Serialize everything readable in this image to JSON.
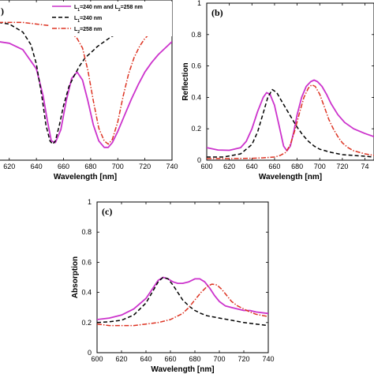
{
  "chart_data": [
    {
      "panel": "a",
      "type": "line",
      "label": "",
      "xlabel": "Wavelength [nm]",
      "ylabel": "",
      "xlim": [
        612,
        740
      ],
      "ylim": [
        0,
        1
      ],
      "x_ticks": [
        "620",
        "640",
        "660",
        "680",
        "700",
        "720",
        "740"
      ],
      "y_ticks": [],
      "grid": false,
      "legend_position": "top-center",
      "series": [
        {
          "name": "L₁=240 nm and L₂=258 nm",
          "label_parts": [
            "L",
            "1",
            "=240 nm and L",
            "2",
            "=258 nm"
          ],
          "color": "#cc33cc",
          "dash": "solid",
          "x": [
            612,
            620,
            630,
            640,
            645,
            648,
            651,
            654,
            658,
            662,
            666,
            670,
            674,
            678,
            682,
            686,
            690,
            693,
            696,
            700,
            705,
            710,
            715,
            720,
            725,
            730,
            735,
            740
          ],
          "y": [
            0.74,
            0.73,
            0.69,
            0.57,
            0.4,
            0.25,
            0.12,
            0.11,
            0.19,
            0.37,
            0.51,
            0.55,
            0.5,
            0.37,
            0.22,
            0.12,
            0.08,
            0.08,
            0.11,
            0.18,
            0.28,
            0.38,
            0.47,
            0.55,
            0.61,
            0.66,
            0.7,
            0.74
          ]
        },
        {
          "name": "L₁=240 nm",
          "label_parts": [
            "L",
            "1",
            "=240 nm"
          ],
          "color": "#000000",
          "dash": "dashed",
          "x": [
            612,
            620,
            630,
            636,
            640,
            644,
            647,
            650,
            652,
            654,
            657,
            660,
            664,
            668,
            672,
            676,
            680,
            685,
            690,
            695,
            700,
            710,
            720,
            730,
            740
          ],
          "y": [
            0.86,
            0.85,
            0.8,
            0.72,
            0.6,
            0.4,
            0.22,
            0.12,
            0.1,
            0.12,
            0.22,
            0.34,
            0.46,
            0.53,
            0.59,
            0.64,
            0.67,
            0.71,
            0.74,
            0.77,
            0.79,
            0.82,
            0.84,
            0.86,
            0.87
          ]
        },
        {
          "name": "L₂=258 nm",
          "label_parts": [
            "L",
            "2",
            "=258 nm"
          ],
          "color": "#dd3322",
          "dash": "dashdot",
          "x": [
            612,
            620,
            630,
            640,
            650,
            655,
            660,
            665,
            670,
            674,
            678,
            682,
            686,
            690,
            693,
            696,
            700,
            704,
            708,
            712,
            716,
            720,
            725,
            730,
            735,
            740
          ],
          "y": [
            0.86,
            0.86,
            0.86,
            0.85,
            0.84,
            0.83,
            0.82,
            0.8,
            0.76,
            0.7,
            0.56,
            0.37,
            0.2,
            0.12,
            0.1,
            0.13,
            0.24,
            0.4,
            0.54,
            0.64,
            0.71,
            0.76,
            0.8,
            0.83,
            0.85,
            0.86
          ]
        }
      ]
    },
    {
      "panel": "b",
      "type": "line",
      "label": "(b)",
      "xlabel": "Wavelength [nm]",
      "ylabel": "Reflection",
      "xlim": [
        600,
        748
      ],
      "ylim": [
        0,
        1
      ],
      "x_ticks": [
        "600",
        "620",
        "640",
        "660",
        "680",
        "700",
        "720",
        "74"
      ],
      "y_ticks": [
        "0",
        "0.2",
        "0.4",
        "0.6",
        "0.8",
        "1"
      ],
      "grid": false,
      "series": [
        {
          "name": "L₁=240 nm and L₂=258 nm",
          "color": "#cc33cc",
          "dash": "solid",
          "x": [
            600,
            610,
            620,
            630,
            635,
            640,
            645,
            650,
            653,
            656,
            660,
            664,
            668,
            671,
            674,
            677,
            680,
            684,
            688,
            692,
            695,
            698,
            702,
            706,
            710,
            716,
            722,
            730,
            740,
            748
          ],
          "y": [
            0.08,
            0.065,
            0.063,
            0.08,
            0.12,
            0.2,
            0.31,
            0.4,
            0.43,
            0.42,
            0.35,
            0.22,
            0.09,
            0.06,
            0.09,
            0.18,
            0.29,
            0.4,
            0.47,
            0.5,
            0.51,
            0.5,
            0.47,
            0.42,
            0.36,
            0.29,
            0.24,
            0.2,
            0.17,
            0.15
          ]
        },
        {
          "name": "L₁=240 nm",
          "color": "#000000",
          "dash": "dashed",
          "x": [
            600,
            615,
            630,
            640,
            645,
            650,
            654,
            658,
            662,
            666,
            670,
            675,
            680,
            685,
            690,
            695,
            700,
            710,
            720,
            730,
            740,
            748
          ],
          "y": [
            0.02,
            0.02,
            0.04,
            0.1,
            0.18,
            0.3,
            0.4,
            0.45,
            0.43,
            0.38,
            0.33,
            0.27,
            0.21,
            0.16,
            0.12,
            0.09,
            0.07,
            0.05,
            0.035,
            0.03,
            0.025,
            0.02
          ]
        },
        {
          "name": "L₂=258 nm",
          "color": "#dd3322",
          "dash": "dashdot",
          "x": [
            600,
            620,
            640,
            650,
            660,
            665,
            670,
            674,
            678,
            682,
            686,
            690,
            693,
            696,
            700,
            704,
            708,
            712,
            716,
            720,
            725,
            730,
            740,
            748
          ],
          "y": [
            0.01,
            0.01,
            0.012,
            0.015,
            0.02,
            0.03,
            0.05,
            0.1,
            0.19,
            0.3,
            0.4,
            0.46,
            0.48,
            0.47,
            0.42,
            0.34,
            0.26,
            0.2,
            0.15,
            0.11,
            0.08,
            0.06,
            0.04,
            0.03
          ]
        }
      ]
    },
    {
      "panel": "c",
      "type": "line",
      "label": "(c)",
      "xlabel": "Wavelength [nm]",
      "ylabel": "Absorption",
      "xlim": [
        600,
        740
      ],
      "ylim": [
        0,
        1
      ],
      "x_ticks": [
        "600",
        "620",
        "640",
        "660",
        "680",
        "700",
        "720",
        "740"
      ],
      "y_ticks": [
        "0",
        "0.2",
        "0.4",
        "0.6",
        "0.8",
        "1"
      ],
      "grid": false,
      "series": [
        {
          "name": "L₁=240 nm and L₂=258 nm",
          "color": "#cc33cc",
          "dash": "solid",
          "x": [
            600,
            610,
            620,
            630,
            640,
            645,
            650,
            654,
            658,
            662,
            666,
            670,
            675,
            680,
            684,
            688,
            692,
            696,
            700,
            705,
            710,
            715,
            720,
            725,
            730,
            740
          ],
          "y": [
            0.22,
            0.23,
            0.25,
            0.29,
            0.36,
            0.42,
            0.48,
            0.5,
            0.49,
            0.47,
            0.46,
            0.46,
            0.47,
            0.49,
            0.49,
            0.47,
            0.43,
            0.38,
            0.34,
            0.31,
            0.3,
            0.29,
            0.28,
            0.28,
            0.27,
            0.26
          ]
        },
        {
          "name": "L₁=240 nm",
          "color": "#000000",
          "dash": "dashed",
          "x": [
            600,
            610,
            620,
            630,
            640,
            645,
            650,
            654,
            658,
            662,
            666,
            670,
            675,
            680,
            685,
            690,
            700,
            710,
            720,
            730,
            740
          ],
          "y": [
            0.2,
            0.205,
            0.215,
            0.25,
            0.33,
            0.4,
            0.47,
            0.5,
            0.49,
            0.45,
            0.4,
            0.35,
            0.31,
            0.28,
            0.26,
            0.245,
            0.23,
            0.215,
            0.2,
            0.19,
            0.18
          ]
        },
        {
          "name": "L₂=258 nm",
          "color": "#dd3322",
          "dash": "dashdot",
          "x": [
            600,
            610,
            620,
            630,
            640,
            650,
            660,
            670,
            675,
            680,
            685,
            690,
            694,
            698,
            702,
            706,
            710,
            715,
            720,
            725,
            730,
            740
          ],
          "y": [
            0.19,
            0.18,
            0.18,
            0.18,
            0.19,
            0.2,
            0.22,
            0.26,
            0.3,
            0.35,
            0.4,
            0.44,
            0.455,
            0.45,
            0.42,
            0.38,
            0.34,
            0.31,
            0.29,
            0.27,
            0.255,
            0.24
          ]
        }
      ]
    }
  ]
}
